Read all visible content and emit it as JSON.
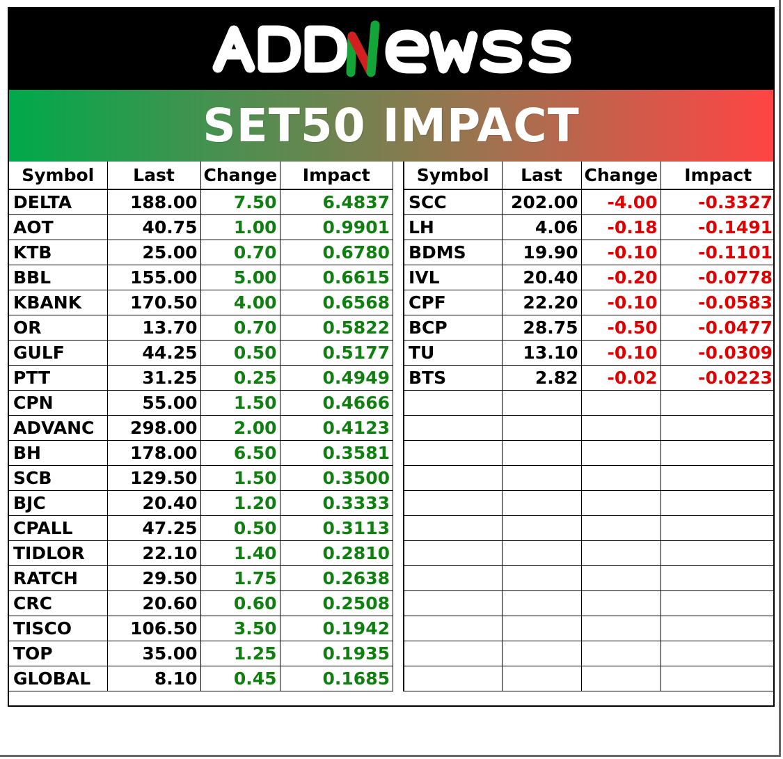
{
  "brand": {
    "name": "ADDNEWSS",
    "colors": {
      "bar": "#000000",
      "letters": "#ffffff",
      "n_stroke": "#13a538",
      "n_accent": "#d22020"
    }
  },
  "title": "SET50 IMPACT",
  "colors": {
    "gradient_start": "#00a94a",
    "gradient_end": "#ff4444",
    "positive": "#0f7f0f",
    "negative": "#e00000"
  },
  "columns": [
    "Symbol",
    "Last",
    "Change",
    "Impact"
  ],
  "gainers": [
    {
      "symbol": "DELTA",
      "last": "188.00",
      "change": "7.50",
      "impact": "6.4837"
    },
    {
      "symbol": "AOT",
      "last": "40.75",
      "change": "1.00",
      "impact": "0.9901"
    },
    {
      "symbol": "KTB",
      "last": "25.00",
      "change": "0.70",
      "impact": "0.6780"
    },
    {
      "symbol": "BBL",
      "last": "155.00",
      "change": "5.00",
      "impact": "0.6615"
    },
    {
      "symbol": "KBANK",
      "last": "170.50",
      "change": "4.00",
      "impact": "0.6568"
    },
    {
      "symbol": "OR",
      "last": "13.70",
      "change": "0.70",
      "impact": "0.5822"
    },
    {
      "symbol": "GULF",
      "last": "44.25",
      "change": "0.50",
      "impact": "0.5177"
    },
    {
      "symbol": "PTT",
      "last": "31.25",
      "change": "0.25",
      "impact": "0.4949"
    },
    {
      "symbol": "CPN",
      "last": "55.00",
      "change": "1.50",
      "impact": "0.4666"
    },
    {
      "symbol": "ADVANC",
      "last": "298.00",
      "change": "2.00",
      "impact": "0.4123"
    },
    {
      "symbol": "BH",
      "last": "178.00",
      "change": "6.50",
      "impact": "0.3581"
    },
    {
      "symbol": "SCB",
      "last": "129.50",
      "change": "1.50",
      "impact": "0.3500"
    },
    {
      "symbol": "BJC",
      "last": "20.40",
      "change": "1.20",
      "impact": "0.3333"
    },
    {
      "symbol": "CPALL",
      "last": "47.25",
      "change": "0.50",
      "impact": "0.3113"
    },
    {
      "symbol": "TIDLOR",
      "last": "22.10",
      "change": "1.40",
      "impact": "0.2810"
    },
    {
      "symbol": "RATCH",
      "last": "29.50",
      "change": "1.75",
      "impact": "0.2638"
    },
    {
      "symbol": "CRC",
      "last": "20.60",
      "change": "0.60",
      "impact": "0.2508"
    },
    {
      "symbol": "TISCO",
      "last": "106.50",
      "change": "3.50",
      "impact": "0.1942"
    },
    {
      "symbol": "TOP",
      "last": "35.00",
      "change": "1.25",
      "impact": "0.1935"
    },
    {
      "symbol": "GLOBAL",
      "last": "8.10",
      "change": "0.45",
      "impact": "0.1685"
    }
  ],
  "losers": [
    {
      "symbol": "SCC",
      "last": "202.00",
      "change": "-4.00",
      "impact": "-0.3327"
    },
    {
      "symbol": "LH",
      "last": "4.06",
      "change": "-0.18",
      "impact": "-0.1491"
    },
    {
      "symbol": "BDMS",
      "last": "19.90",
      "change": "-0.10",
      "impact": "-0.1101"
    },
    {
      "symbol": "IVL",
      "last": "20.40",
      "change": "-0.20",
      "impact": "-0.0778"
    },
    {
      "symbol": "CPF",
      "last": "22.20",
      "change": "-0.10",
      "impact": "-0.0583"
    },
    {
      "symbol": "BCP",
      "last": "28.75",
      "change": "-0.50",
      "impact": "-0.0477"
    },
    {
      "symbol": "TU",
      "last": "13.10",
      "change": "-0.10",
      "impact": "-0.0309"
    },
    {
      "symbol": "BTS",
      "last": "2.82",
      "change": "-0.02",
      "impact": "-0.0223"
    }
  ],
  "total_rows": 20
}
